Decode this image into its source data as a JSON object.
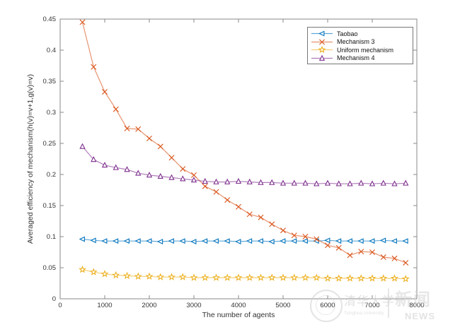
{
  "figure": {
    "background": "#ffffff",
    "axis_color": "#8a8a8a",
    "tick_label_color": "#333333"
  },
  "chart_data": {
    "type": "line",
    "title": "",
    "xlabel": "The number of agents",
    "ylabel": "Averaged efficiency of mechanism(h(v)=v+1,g(v)=v)",
    "xlim": [
      0,
      8000
    ],
    "ylim": [
      0,
      0.45
    ],
    "xticks": [
      0,
      1000,
      2000,
      3000,
      4000,
      5000,
      6000,
      7000,
      8000
    ],
    "yticks": [
      0,
      0.05,
      0.1,
      0.15,
      0.2,
      0.25,
      0.3,
      0.35,
      0.4,
      0.45
    ],
    "grid": false,
    "legend_position": "top-right",
    "x": [
      500,
      750,
      1000,
      1250,
      1500,
      1750,
      2000,
      2250,
      2500,
      2750,
      3000,
      3250,
      3500,
      3750,
      4000,
      4250,
      4500,
      4750,
      5000,
      5250,
      5500,
      5750,
      6000,
      6250,
      6500,
      6750,
      7000,
      7250,
      7500,
      7750
    ],
    "series": [
      {
        "name": "Taobao",
        "color": "#0072BD",
        "marker": "triangle-left",
        "values": [
          0.096,
          0.094,
          0.093,
          0.093,
          0.093,
          0.093,
          0.093,
          0.092,
          0.093,
          0.093,
          0.092,
          0.093,
          0.093,
          0.093,
          0.092,
          0.093,
          0.093,
          0.092,
          0.093,
          0.093,
          0.093,
          0.093,
          0.094,
          0.093,
          0.093,
          0.093,
          0.093,
          0.094,
          0.093,
          0.093
        ]
      },
      {
        "name": "Mechanism 3",
        "color": "#D95319",
        "marker": "x",
        "values": [
          0.445,
          0.373,
          0.333,
          0.305,
          0.274,
          0.273,
          0.258,
          0.245,
          0.227,
          0.209,
          0.199,
          0.181,
          0.172,
          0.159,
          0.148,
          0.136,
          0.131,
          0.12,
          0.11,
          0.102,
          0.1,
          0.096,
          0.086,
          0.082,
          0.07,
          0.076,
          0.075,
          0.067,
          0.065,
          0.058
        ]
      },
      {
        "name": "Uniform mechanism",
        "color": "#EDB120",
        "marker": "star",
        "values": [
          0.047,
          0.043,
          0.04,
          0.038,
          0.037,
          0.036,
          0.036,
          0.035,
          0.035,
          0.035,
          0.034,
          0.034,
          0.034,
          0.034,
          0.034,
          0.034,
          0.034,
          0.034,
          0.034,
          0.034,
          0.034,
          0.034,
          0.033,
          0.033,
          0.033,
          0.033,
          0.033,
          0.033,
          0.033,
          0.032
        ]
      },
      {
        "name": "Mechanism 4",
        "color": "#7E2F8E",
        "marker": "triangle-up",
        "values": [
          0.245,
          0.224,
          0.215,
          0.211,
          0.208,
          0.202,
          0.199,
          0.197,
          0.195,
          0.193,
          0.191,
          0.189,
          0.188,
          0.188,
          0.189,
          0.188,
          0.187,
          0.187,
          0.186,
          0.186,
          0.186,
          0.185,
          0.186,
          0.185,
          0.185,
          0.186,
          0.185,
          0.186,
          0.185,
          0.186
        ]
      }
    ]
  },
  "legend": {
    "items": [
      "Taobao",
      "Mechanism 3",
      "Uniform mechanism",
      "Mechanism 4"
    ]
  },
  "watermark": {
    "cn_main": "清华大学",
    "sub": "Tsinghua University",
    "cn_news": "新闻",
    "news": "NEWS"
  }
}
